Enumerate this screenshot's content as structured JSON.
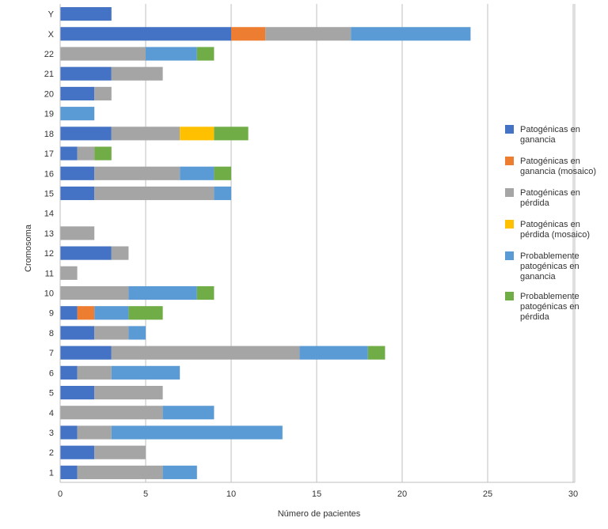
{
  "chart_data": {
    "type": "bar",
    "orientation": "horizontal",
    "stacked": true,
    "xlabel": "Número de pacientes",
    "ylabel": "Cromosoma",
    "xlim": [
      0,
      30
    ],
    "x_ticks": [
      "0",
      "5",
      "10",
      "15",
      "20",
      "25",
      "30"
    ],
    "grid": "vertical",
    "legend_position": "right",
    "categories": [
      "1",
      "2",
      "3",
      "4",
      "5",
      "6",
      "7",
      "8",
      "9",
      "10",
      "11",
      "12",
      "13",
      "14",
      "15",
      "16",
      "17",
      "18",
      "19",
      "20",
      "21",
      "22",
      "X",
      "Y"
    ],
    "series": [
      {
        "name": "Patogénicas en ganancia",
        "color": "#4472C4",
        "values": [
          1,
          2,
          1,
          0,
          2,
          1,
          3,
          2,
          1,
          0,
          0,
          3,
          0,
          0,
          2,
          2,
          1,
          3,
          0,
          2,
          3,
          0,
          10,
          3
        ]
      },
      {
        "name": "Patogénicas en ganancia (mosaico)",
        "color": "#ED7D31",
        "values": [
          0,
          0,
          0,
          0,
          0,
          0,
          0,
          0,
          1,
          0,
          0,
          0,
          0,
          0,
          0,
          0,
          0,
          0,
          0,
          0,
          0,
          0,
          2,
          0
        ]
      },
      {
        "name": "Patogénicas en pérdida",
        "color": "#A5A5A5",
        "values": [
          5,
          3,
          2,
          6,
          4,
          2,
          11,
          2,
          0,
          4,
          1,
          1,
          2,
          0,
          7,
          5,
          1,
          4,
          0,
          1,
          3,
          5,
          5,
          0
        ]
      },
      {
        "name": "Patogénicas en pérdida (mosaico)",
        "color": "#FFC000",
        "values": [
          0,
          0,
          0,
          0,
          0,
          0,
          0,
          0,
          0,
          0,
          0,
          0,
          0,
          0,
          0,
          0,
          0,
          2,
          0,
          0,
          0,
          0,
          0,
          0
        ]
      },
      {
        "name": "Probablemente patogénicas en ganancia",
        "color": "#5B9BD5",
        "values": [
          2,
          0,
          10,
          3,
          0,
          4,
          4,
          1,
          2,
          4,
          0,
          0,
          0,
          0,
          1,
          2,
          0,
          0,
          2,
          0,
          0,
          3,
          7,
          0
        ]
      },
      {
        "name": "Probablemente patogénicas en pérdida",
        "color": "#70AD47",
        "values": [
          0,
          0,
          0,
          0,
          0,
          0,
          1,
          0,
          2,
          1,
          0,
          0,
          0,
          0,
          0,
          1,
          1,
          2,
          0,
          0,
          0,
          1,
          0,
          0
        ]
      }
    ]
  }
}
